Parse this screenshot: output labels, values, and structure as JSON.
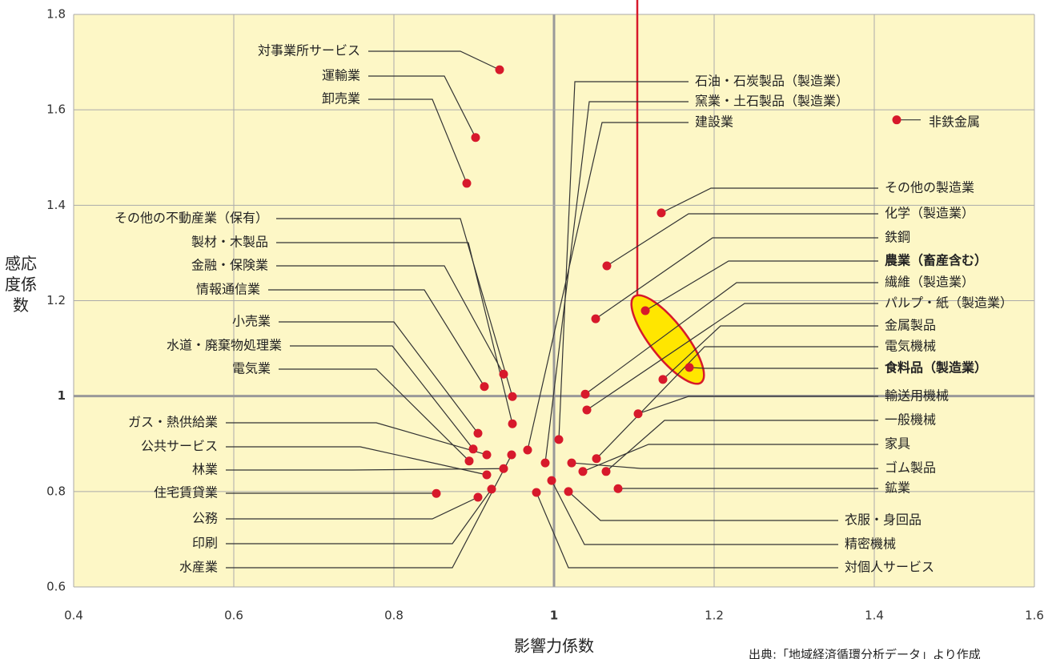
{
  "chart_data": {
    "type": "scatter",
    "x_label": "影響力係数",
    "y_label": "感応度係数",
    "source": "出典:「地域経済循環分析データ」より作成",
    "xlim": [
      0.4,
      1.6
    ],
    "ylim": [
      0.6,
      1.8
    ],
    "xticks": [
      0.4,
      0.6,
      0.8,
      1,
      1.2,
      1.4,
      1.6
    ],
    "yticks": [
      0.6,
      0.8,
      1,
      1.2,
      1.4,
      1.6,
      1.8
    ],
    "grid": true,
    "color": "#d7192b",
    "points": [
      {
        "name": "対事業所サービス",
        "x": 0.932,
        "y": 1.684
      },
      {
        "name": "運輸業",
        "x": 0.902,
        "y": 1.542
      },
      {
        "name": "卸売業",
        "x": 0.891,
        "y": 1.446
      },
      {
        "name": "非鉄金属",
        "x": 1.428,
        "y": 1.579
      },
      {
        "name": "その他の製造業",
        "x": 1.134,
        "y": 1.384
      },
      {
        "name": "化学（製造業）",
        "x": 1.066,
        "y": 1.273
      },
      {
        "name": "鉄鋼",
        "x": 1.052,
        "y": 1.162
      },
      {
        "name": "農業（畜産含む）",
        "x": 1.114,
        "y": 1.179,
        "bold": true
      },
      {
        "name": "繊維（製造業）",
        "x": 1.039,
        "y": 1.004
      },
      {
        "name": "パルプ・紙（製造業）",
        "x": 1.041,
        "y": 0.971
      },
      {
        "name": "金属製品",
        "x": 1.136,
        "y": 1.035
      },
      {
        "name": "電気機械",
        "x": 1.053,
        "y": 0.869
      },
      {
        "name": "食料品（製造業）",
        "x": 1.169,
        "y": 1.06,
        "bold": true
      },
      {
        "name": "輸送用機械",
        "x": 1.105,
        "y": 0.963
      },
      {
        "name": "一般機械",
        "x": 1.065,
        "y": 0.842
      },
      {
        "name": "家具",
        "x": 1.036,
        "y": 0.842
      },
      {
        "name": "ゴム製品",
        "x": 1.022,
        "y": 0.86
      },
      {
        "name": "鉱業",
        "x": 1.08,
        "y": 0.806
      },
      {
        "name": "衣服・身回品",
        "x": 1.018,
        "y": 0.8
      },
      {
        "name": "精密機械",
        "x": 0.997,
        "y": 0.823
      },
      {
        "name": "対個人サービス",
        "x": 0.978,
        "y": 0.798
      },
      {
        "name": "石油・石炭製品（製造業）",
        "x": 1.006,
        "y": 0.909
      },
      {
        "name": "窯業・土石製品（製造業）",
        "x": 0.989,
        "y": 0.86
      },
      {
        "name": "建設業",
        "x": 0.967,
        "y": 0.887
      },
      {
        "name": "その他の不動産業（保有）",
        "x": 0.948,
        "y": 0.999
      },
      {
        "name": "製材・木製品",
        "x": 0.948,
        "y": 0.942
      },
      {
        "name": "金融・保険業",
        "x": 0.937,
        "y": 1.046
      },
      {
        "name": "情報通信業",
        "x": 0.913,
        "y": 1.02
      },
      {
        "name": "小売業",
        "x": 0.905,
        "y": 0.922
      },
      {
        "name": "水道・廃棄物処理業",
        "x": 0.899,
        "y": 0.889
      },
      {
        "name": "電気業",
        "x": 0.894,
        "y": 0.864
      },
      {
        "name": "ガス・熱供給業",
        "x": 0.916,
        "y": 0.877
      },
      {
        "name": "公共サービス",
        "x": 0.916,
        "y": 0.835
      },
      {
        "name": "林業",
        "x": 0.937,
        "y": 0.848
      },
      {
        "name": "住宅賃貸業",
        "x": 0.853,
        "y": 0.796
      },
      {
        "name": "公務",
        "x": 0.905,
        "y": 0.788
      },
      {
        "name": "印刷",
        "x": 0.922,
        "y": 0.805
      },
      {
        "name": "水産業",
        "x": 0.947,
        "y": 0.877
      }
    ]
  }
}
